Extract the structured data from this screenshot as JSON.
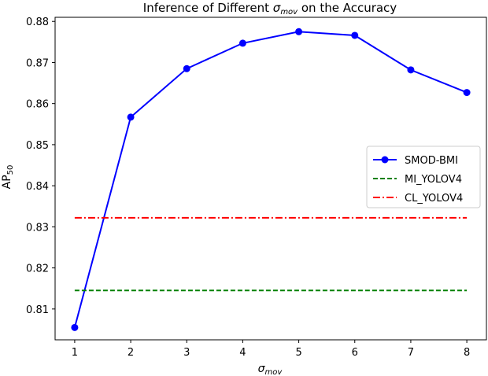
{
  "chart_data": {
    "type": "line",
    "title": {
      "prefix": "Inference of Different ",
      "symbol": "σ",
      "subscript": "mov",
      "suffix": " on the Accuracy"
    },
    "xlabel": {
      "symbol": "σ",
      "subscript": "mov"
    },
    "ylabel": {
      "base": "AP",
      "subscript": "50"
    },
    "xlim": [
      0.65,
      8.35
    ],
    "ylim": [
      0.8025,
      0.881
    ],
    "x_ticks": [
      1,
      2,
      3,
      4,
      5,
      6,
      7,
      8
    ],
    "y_ticks": [
      0.81,
      0.82,
      0.83,
      0.84,
      0.85,
      0.86,
      0.87,
      0.88
    ],
    "grid": false,
    "legend_position": "center-right",
    "series": [
      {
        "name": "SMOD-BMI",
        "color": "#0000ff",
        "style": "solid-marker",
        "x": [
          1,
          2,
          3,
          4,
          5,
          6,
          7,
          8
        ],
        "y": [
          0.8055,
          0.8567,
          0.8685,
          0.8747,
          0.8775,
          0.8766,
          0.8682,
          0.8627
        ]
      },
      {
        "name": "MI_YOLOV4",
        "color": "#008000",
        "style": "dashed",
        "x": [
          1,
          8
        ],
        "y": [
          0.8145,
          0.8145
        ]
      },
      {
        "name": "CL_YOLOV4",
        "color": "#ff0000",
        "style": "dashdot",
        "x": [
          1,
          8
        ],
        "y": [
          0.8322,
          0.8322
        ]
      }
    ]
  }
}
